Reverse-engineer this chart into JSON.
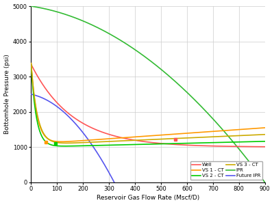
{
  "xlabel": "Reservoir Gas Flow Rate (Mscf/D)",
  "ylabel": "Bottomhole Pressure (psi)",
  "xlim": [
    0,
    900
  ],
  "ylim": [
    0,
    5000
  ],
  "xticks": [
    0,
    100,
    200,
    300,
    400,
    500,
    600,
    700,
    800,
    900
  ],
  "yticks": [
    0,
    1000,
    2000,
    3000,
    4000,
    5000
  ],
  "background_color": "#ffffff",
  "grid_color": "#cccccc",
  "well_color": "#ff5555",
  "vs1ct_color": "#ff9900",
  "vs2ct_color": "#00cc00",
  "vs3ct_color": "#ccaa00",
  "ipr_color": "#33bb33",
  "future_ipr_color": "#5555ee",
  "well_marker_x": 555,
  "well_marker_y": 1220,
  "vs1_marker_x": 57,
  "vs1_marker_y": 1130,
  "vs2_marker_x": 93,
  "vs2_marker_y": 1110,
  "legend_cols": 2,
  "legend_items": [
    "Well",
    "VS 1 - CT",
    "VS 2 - CT",
    "VS 3 - CT",
    "IPR",
    "Future IPR"
  ]
}
